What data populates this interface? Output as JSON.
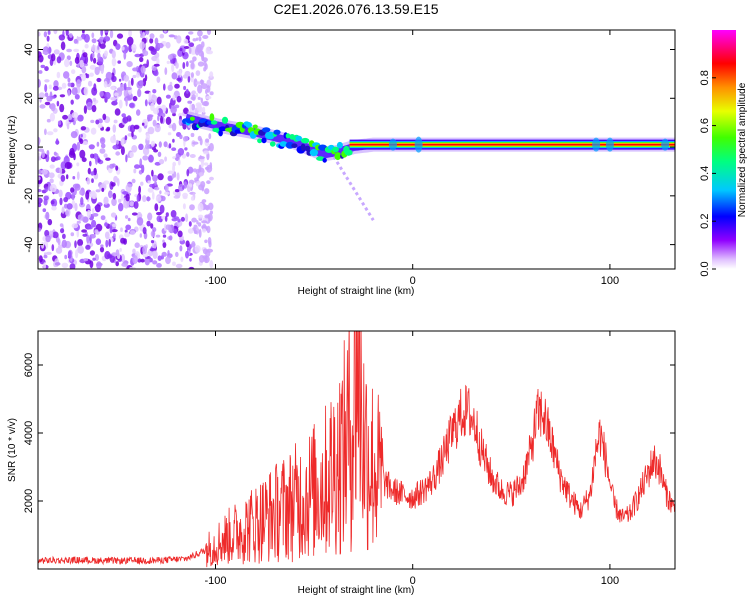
{
  "title": "C2E1.2026.076.13.59.E15",
  "chart_data": [
    {
      "type": "heatmap",
      "name": "spectrogram",
      "xlabel": "Height of straight line (km)",
      "ylabel": "Frequency (Hz)",
      "xlim": [
        -190,
        133
      ],
      "ylim": [
        -50,
        48
      ],
      "xticks": [
        -100,
        0,
        100
      ],
      "xtick_labels": [
        "-100",
        "0",
        "100"
      ],
      "yticks": [
        -40,
        -20,
        0,
        20,
        40
      ],
      "ytick_labels": [
        "-40",
        "-20",
        "0",
        "20",
        "40"
      ],
      "noise_region": {
        "x_from": -190,
        "x_to": -108,
        "f_from": -50,
        "f_to": 48
      },
      "signal_track": {
        "x": [
          -115,
          -100,
          -80,
          -60,
          -45,
          -38,
          -30,
          -20,
          -10,
          0,
          20,
          60,
          100,
          133
        ],
        "freq": [
          12,
          9,
          6,
          2,
          -3,
          -2,
          0,
          1,
          1,
          1,
          1,
          1,
          1,
          1
        ]
      },
      "colorbar": {
        "label": "Normalized spectral amplitude",
        "range": [
          0,
          1
        ],
        "ticks": [
          0.0,
          0.2,
          0.4,
          0.6,
          0.8
        ],
        "tick_labels": [
          "0.0",
          "0.2",
          "0.4",
          "0.6",
          "0.8"
        ],
        "colors": [
          "#ffffff",
          "#c080ff",
          "#8000ff",
          "#0000ff",
          "#00ffff",
          "#00ff00",
          "#ffff00",
          "#ff8000",
          "#ff0000",
          "#ff00ff"
        ]
      }
    },
    {
      "type": "line",
      "name": "snr",
      "xlabel": "Height of straight line (km)",
      "ylabel": "SNR (10 * v/v)",
      "xlim": [
        -190,
        133
      ],
      "ylim": [
        0,
        7000
      ],
      "xticks": [
        -100,
        0,
        100
      ],
      "xtick_labels": [
        "-100",
        "0",
        "100"
      ],
      "yticks": [
        2000,
        4000,
        6000
      ],
      "ytick_labels": [
        "2000",
        "4000",
        "6000"
      ],
      "color": "#ee2a2a",
      "series": [
        {
          "name": "SNR",
          "x": [
            -190,
            -170,
            -150,
            -130,
            -115,
            -105,
            -95,
            -85,
            -75,
            -65,
            -55,
            -45,
            -40,
            -35,
            -30,
            -28,
            -25,
            -20,
            -15,
            -10,
            -5,
            0,
            5,
            10,
            15,
            20,
            25,
            28,
            32,
            35,
            40,
            45,
            50,
            55,
            60,
            63,
            66,
            70,
            75,
            80,
            85,
            90,
            93,
            95,
            98,
            102,
            106,
            110,
            115,
            120,
            122,
            125,
            128,
            133
          ],
          "y": [
            250,
            260,
            240,
            250,
            300,
            550,
            900,
            1200,
            1500,
            1800,
            2100,
            2500,
            3000,
            3500,
            4500,
            6800,
            3800,
            3000,
            2600,
            2300,
            2200,
            2100,
            2300,
            2600,
            3200,
            4000,
            4600,
            4650,
            4200,
            3500,
            2700,
            2300,
            2200,
            2500,
            3500,
            4500,
            4600,
            3800,
            2700,
            2100,
            1700,
            2200,
            3500,
            4000,
            3200,
            1900,
            1500,
            1600,
            2200,
            2900,
            3200,
            3000,
            2300,
            1700
          ]
        }
      ]
    }
  ]
}
